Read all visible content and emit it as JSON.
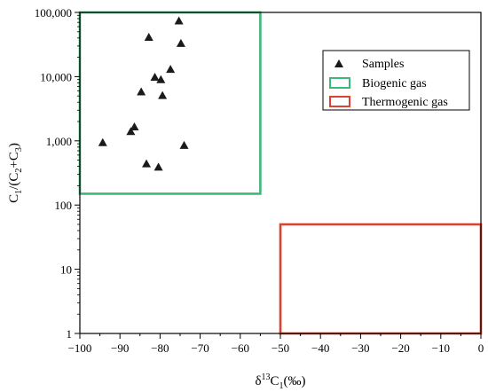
{
  "chart_data": {
    "type": "scatter",
    "title": "",
    "xlabel": {
      "base": "δ",
      "sup": "13",
      "main": "C",
      "sub": "1",
      "tail": "(‰)"
    },
    "ylabel": {
      "p1": "C",
      "s1": "1",
      "p2": "/(C",
      "s2": "2",
      "p3": "+C",
      "s3": "3",
      "p4": ")"
    },
    "xlim": [
      -100,
      0
    ],
    "ylim": [
      1,
      100000
    ],
    "y_scale": "log",
    "grid": false,
    "legend_position": "top-right",
    "x_ticks": [
      {
        "value": -100,
        "label": "−100"
      },
      {
        "value": -90,
        "label": "−90"
      },
      {
        "value": -80,
        "label": "−80"
      },
      {
        "value": -70,
        "label": "−70"
      },
      {
        "value": -60,
        "label": "−60"
      },
      {
        "value": -50,
        "label": "−50"
      },
      {
        "value": -40,
        "label": "−40"
      },
      {
        "value": -30,
        "label": "−30"
      },
      {
        "value": -20,
        "label": "−20"
      },
      {
        "value": -10,
        "label": "−10"
      },
      {
        "value": 0,
        "label": "0"
      }
    ],
    "y_ticks": [
      {
        "value": 1,
        "label": "1"
      },
      {
        "value": 10,
        "label": "10"
      },
      {
        "value": 100,
        "label": "100"
      },
      {
        "value": 1000,
        "label": "1,000"
      },
      {
        "value": 10000,
        "label": "10,000"
      },
      {
        "value": 100000,
        "label": "100,000"
      }
    ],
    "series": [
      {
        "name": "Samples",
        "marker": "triangle",
        "color": "#1a1a1a",
        "points": [
          {
            "x": -75.3,
            "y": 74000
          },
          {
            "x": -82.8,
            "y": 41000
          },
          {
            "x": -74.8,
            "y": 33000
          },
          {
            "x": -77.4,
            "y": 13000
          },
          {
            "x": -81.3,
            "y": 9800
          },
          {
            "x": -79.8,
            "y": 9000
          },
          {
            "x": -84.7,
            "y": 5800
          },
          {
            "x": -79.4,
            "y": 5100
          },
          {
            "x": -86.4,
            "y": 1650
          },
          {
            "x": -87.3,
            "y": 1400
          },
          {
            "x": -94.3,
            "y": 940
          },
          {
            "x": -74.0,
            "y": 850
          },
          {
            "x": -83.4,
            "y": 440
          },
          {
            "x": -80.4,
            "y": 390
          }
        ]
      }
    ],
    "regions": [
      {
        "name": "Biogenic gas",
        "color": "#3cb878",
        "x": [
          -100,
          -55
        ],
        "y": [
          150,
          100000
        ]
      },
      {
        "name": "Thermogenic gas",
        "color": "#d9432f",
        "x": [
          -50,
          0
        ],
        "y": [
          1,
          50
        ]
      }
    ]
  }
}
